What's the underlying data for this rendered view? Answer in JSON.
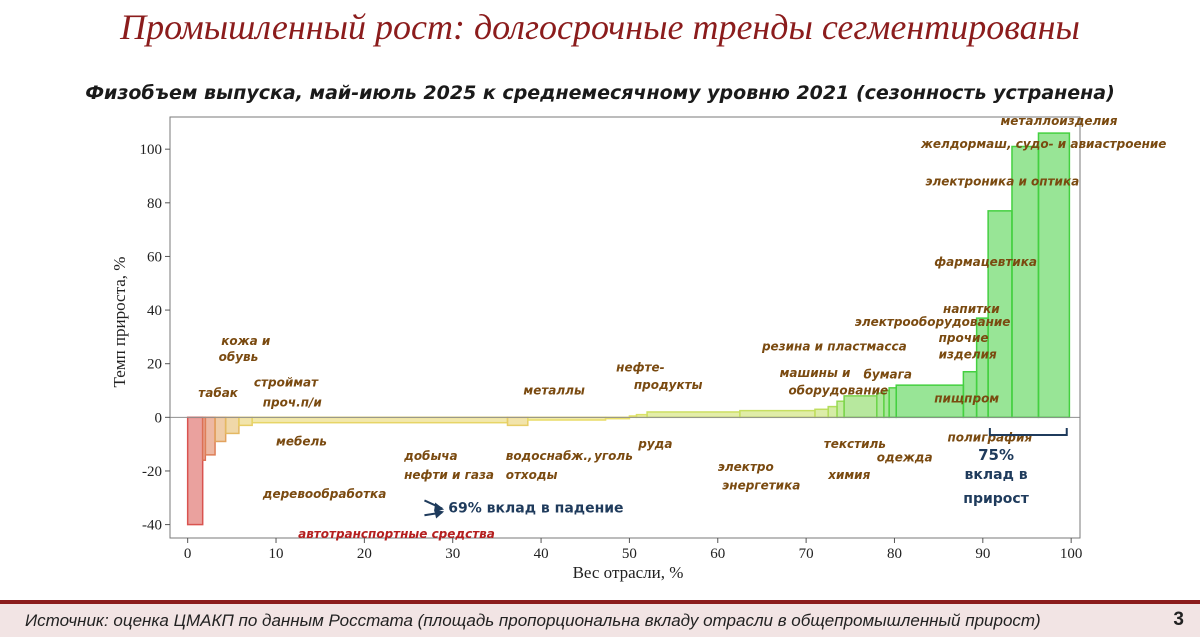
{
  "slide_title": "Промышленный рост: долгосрочные тренды сегментированы",
  "footer": {
    "source": "Источник: оценка ЦМАКП по данным Росстата (площадь пропорциональна вкладу отрасли в общепромышленный прирост)",
    "page_number": "3"
  },
  "colors": {
    "title": "#8b1c1c",
    "negative": "#d9534f",
    "neutral": "#e9e36a",
    "positive": "#44d040",
    "annotation": "#1f3b5c",
    "label": "#7a4a10"
  },
  "chart_data": {
    "type": "bar",
    "subtype": "variable-width (Marimekko-style) bar chart",
    "title": "Физобъем выпуска, май-июль 2025 к среднемесячному уровню 2021 (сезонность устранена)",
    "xlabel": "Вес отрасли, %",
    "ylabel": "Темп прироста, %",
    "xlim": [
      -2,
      101
    ],
    "ylim": [
      -45,
      112
    ],
    "xticks": [
      0,
      10,
      20,
      30,
      40,
      50,
      60,
      70,
      80,
      90,
      100
    ],
    "yticks": [
      -40,
      -20,
      0,
      20,
      40,
      60,
      80,
      100
    ],
    "grid": false,
    "legend": "none",
    "bars": [
      {
        "x0": 0,
        "x1": 1.7,
        "y": -40
      },
      {
        "x0": 1.7,
        "x1": 2.0,
        "y": -16
      },
      {
        "x0": 2.0,
        "x1": 3.1,
        "y": -14
      },
      {
        "x0": 3.1,
        "x1": 4.3,
        "y": -9
      },
      {
        "x0": 4.3,
        "x1": 5.8,
        "y": -6
      },
      {
        "x0": 5.8,
        "x1": 7.3,
        "y": -3
      },
      {
        "x0": 7.3,
        "x1": 36.2,
        "y": -2
      },
      {
        "x0": 36.2,
        "x1": 38.5,
        "y": -3
      },
      {
        "x0": 38.5,
        "x1": 47.3,
        "y": -1
      },
      {
        "x0": 47.3,
        "x1": 50.0,
        "y": -0.5
      },
      {
        "x0": 50.0,
        "x1": 50.8,
        "y": 0.5
      },
      {
        "x0": 50.8,
        "x1": 52.0,
        "y": 1
      },
      {
        "x0": 52.0,
        "x1": 62.5,
        "y": 2
      },
      {
        "x0": 62.5,
        "x1": 71.0,
        "y": 2.5
      },
      {
        "x0": 71.0,
        "x1": 72.5,
        "y": 3
      },
      {
        "x0": 72.5,
        "x1": 73.5,
        "y": 4
      },
      {
        "x0": 73.5,
        "x1": 74.3,
        "y": 6
      },
      {
        "x0": 74.3,
        "x1": 78.0,
        "y": 8
      },
      {
        "x0": 78.0,
        "x1": 78.8,
        "y": 9
      },
      {
        "x0": 78.8,
        "x1": 79.4,
        "y": 10
      },
      {
        "x0": 79.4,
        "x1": 80.2,
        "y": 11
      },
      {
        "x0": 80.2,
        "x1": 87.8,
        "y": 12
      },
      {
        "x0": 87.8,
        "x1": 89.3,
        "y": 17
      },
      {
        "x0": 89.3,
        "x1": 90.6,
        "y": 37
      },
      {
        "x0": 90.6,
        "x1": 93.3,
        "y": 77
      },
      {
        "x0": 93.3,
        "x1": 96.3,
        "y": 101
      },
      {
        "x0": 96.3,
        "x1": 99.8,
        "y": 106
      }
    ],
    "labels": [
      {
        "text": "табак",
        "x": 1.2,
        "y": 7.5
      },
      {
        "text": "кожа и",
        "x": 3.8,
        "y": 27
      },
      {
        "text": "обувь",
        "x": 3.5,
        "y": 21
      },
      {
        "text": "строймат",
        "x": 7.5,
        "y": 11.5
      },
      {
        "text": "проч.п/и",
        "x": 8.5,
        "y": 4
      },
      {
        "text": "мебель",
        "x": 10.0,
        "y": -10.5
      },
      {
        "text": "деревообработка",
        "x": 8.5,
        "y": -30
      },
      {
        "text": "автотранспортные средства",
        "x": 12.5,
        "y": -45
      },
      {
        "text": "добыча",
        "x": 24.5,
        "y": -16
      },
      {
        "text": "нефти и газа",
        "x": 24.5,
        "y": -23
      },
      {
        "text": "водоснабж.,",
        "x": 36.0,
        "y": -16
      },
      {
        "text": "отходы",
        "x": 36.0,
        "y": -23
      },
      {
        "text": "металлы",
        "x": 38.0,
        "y": 8.5
      },
      {
        "text": "уголь",
        "x": 46.0,
        "y": -16
      },
      {
        "text": "руда",
        "x": 51.0,
        "y": -11.5
      },
      {
        "text": "нефте-",
        "x": 48.5,
        "y": 17
      },
      {
        "text": "продукты",
        "x": 50.5,
        "y": 10.5
      },
      {
        "text": "электро",
        "x": 60.0,
        "y": -20
      },
      {
        "text": "энергетика",
        "x": 60.5,
        "y": -27
      },
      {
        "text": "резина и пластмасса",
        "x": 65.0,
        "y": 25
      },
      {
        "text": "электрооборудование",
        "x": 75.5,
        "y": 34
      },
      {
        "text": "машины и",
        "x": 67.0,
        "y": 15
      },
      {
        "text": "оборудование",
        "x": 68.0,
        "y": 8.5
      },
      {
        "text": "бумага",
        "x": 76.5,
        "y": 14.5
      },
      {
        "text": "текстиль",
        "x": 72.0,
        "y": -11.5
      },
      {
        "text": "химия",
        "x": 72.5,
        "y": -23
      },
      {
        "text": "одежда",
        "x": 78.0,
        "y": -16.5
      },
      {
        "text": "полиграфия",
        "x": 86.0,
        "y": -9
      },
      {
        "text": "пищпром",
        "x": 84.5,
        "y": 5.5
      },
      {
        "text": "напитки",
        "x": 85.5,
        "y": 39
      },
      {
        "text": "прочие",
        "x": 85.0,
        "y": 28
      },
      {
        "text": "изделия",
        "x": 85.0,
        "y": 22
      },
      {
        "text": "фармацевтика",
        "x": 84.5,
        "y": 56.5
      },
      {
        "text": "электроника и оптика",
        "x": 83.5,
        "y": 86.5
      },
      {
        "text": "желдормаш, судо- и авиастроение",
        "x": 83.0,
        "y": 100.5
      },
      {
        "text": "металлоизделия",
        "x": 92.0,
        "y": 109
      }
    ],
    "annotations": [
      {
        "text": "69% вклад в падение",
        "x": 29.5,
        "y": -35.5
      },
      {
        "text": "75%",
        "x": 91.5,
        "y": -16
      },
      {
        "text": "вклад в",
        "x": 91.5,
        "y": -23
      },
      {
        "text": "прирост",
        "x": 91.5,
        "y": -32
      }
    ]
  }
}
